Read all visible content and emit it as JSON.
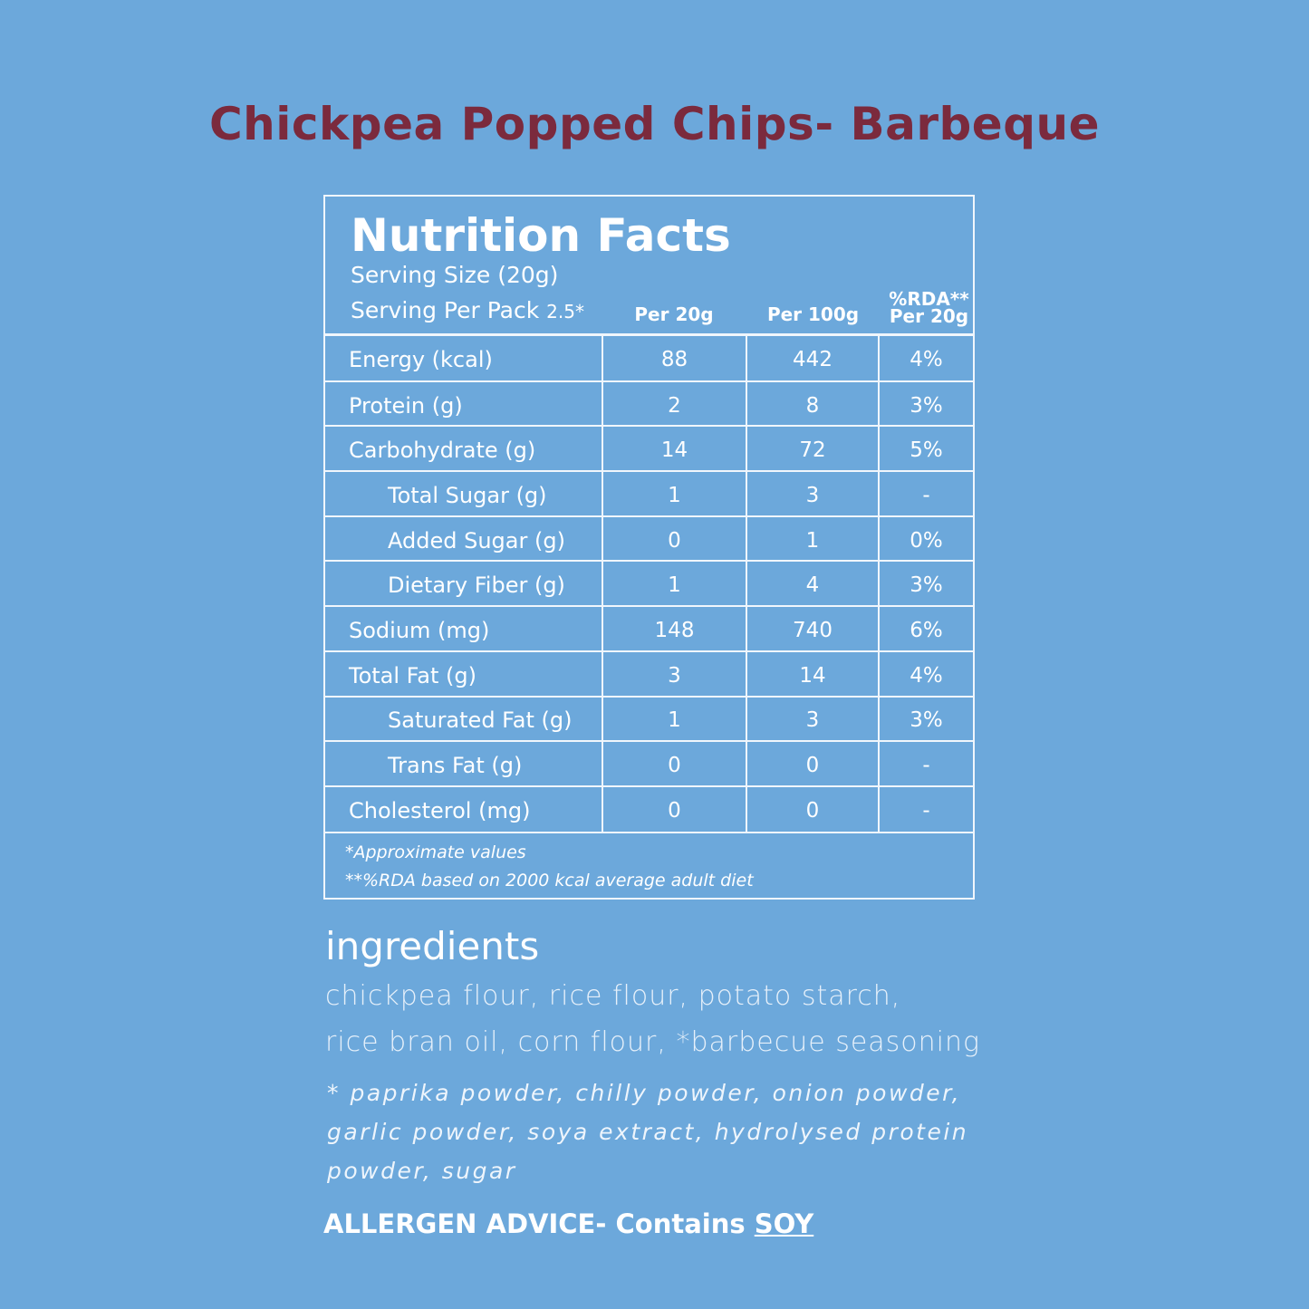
{
  "title": "Chickpea Popped Chips- Barbeque",
  "panel": {
    "heading": "Nutrition Facts",
    "serving_size": "Serving Size (20g)",
    "serving_per_pack": "Serving Per Pack",
    "serving_per_pack_value": "2.5*",
    "columns": [
      "Per 20g",
      "Per 100g",
      "%RDA**",
      "Per 20g"
    ],
    "rows": [
      {
        "label": "Energy (kcal)",
        "per20": "88",
        "per100": "442",
        "rda": "4%"
      },
      {
        "label": "Protein (g)",
        "per20": "2",
        "per100": "8",
        "rda": "3%"
      },
      {
        "label": "Carbohydrate (g)",
        "per20": "14",
        "per100": "72",
        "rda": "5%"
      },
      {
        "label": "Total Sugar (g)",
        "per20": "1",
        "per100": "3",
        "rda": "-"
      },
      {
        "label": "Added Sugar (g)",
        "per20": "0",
        "per100": "1",
        "rda": "0%"
      },
      {
        "label": "Dietary Fiber (g)",
        "per20": "1",
        "per100": "4",
        "rda": "3%"
      },
      {
        "label": "Sodium (mg)",
        "per20": "148",
        "per100": "740",
        "rda": "6%"
      },
      {
        "label": "Total Fat (g)",
        "per20": "3",
        "per100": "14",
        "rda": "4%"
      },
      {
        "label": "Saturated Fat (g)",
        "per20": "1",
        "per100": "3",
        "rda": "3%"
      },
      {
        "label": "Trans Fat (g)",
        "per20": "0",
        "per100": "0",
        "rda": "-"
      },
      {
        "label": "Cholesterol (mg)",
        "per20": "0",
        "per100": "0",
        "rda": "-"
      }
    ],
    "footnote1": "*Approximate values",
    "footnote2": "**%RDA based on 2000 kcal average adult diet"
  },
  "ingredients": {
    "heading": "ingredients",
    "line1": "chickpea flour, rice flour, potato starch,",
    "line2": "rice bran oil, corn flour, *barbecue seasoning",
    "seasoning1": "* paprika powder, chilly powder, onion powder,",
    "seasoning2": "garlic powder, soya extract, hydrolysed protein",
    "seasoning3": "powder, sugar"
  },
  "allergen": {
    "prefix": "ALLERGEN ADVICE- Contains",
    "allergen": "SOY"
  },
  "colors": {
    "background": "#6ca8db",
    "title": "#7b2a3d"
  }
}
